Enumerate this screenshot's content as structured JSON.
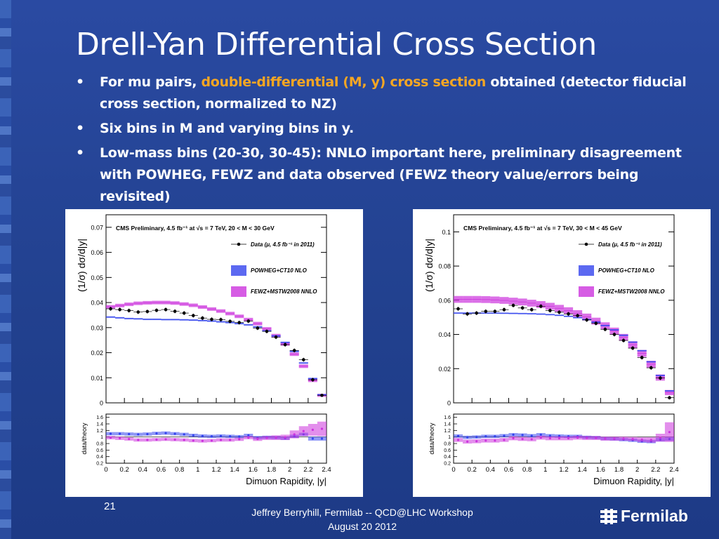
{
  "slide": {
    "title": "Drell-Yan Differential Cross Section",
    "bullets": [
      {
        "pre": "For mu pairs, ",
        "highlight": "double-differential (M, y) cross section",
        "post": " obtained (detector fiducial cross section, normalized to NZ)"
      },
      {
        "pre": "Six bins in M and varying bins in y.",
        "highlight": "",
        "post": ""
      },
      {
        "pre": "Low-mass bins (20-30, 30-45):  NNLO important here, preliminary disagreement with POWHEG, FEWZ and data observed (FEWZ theory value/errors being revisited)",
        "highlight": "",
        "post": ""
      }
    ],
    "bullet_symbol": "•",
    "slide_number": "21",
    "footer_line1": "Jeffrey Berryhill, Fermilab -- QCD@LHC Workshop",
    "footer_line2": "August 20 2012",
    "logo_text": "Fermilab",
    "logo_icon": "fermilab-logo-icon"
  },
  "colors": {
    "background": "#2a4aa2",
    "highlight": "#f5a623",
    "powheg": "#3344ee",
    "fewz": "#cc33dd",
    "data": "#000000"
  },
  "chart_data": [
    {
      "type": "scatter",
      "title": "CMS Preliminary, 4.5 fb⁻¹ at √s = 7 TeV, 20 < M < 30 GeV",
      "ylabel": "(1/σ) dσ/d|y|",
      "xlabel": "Dimuon Rapidity, |y|",
      "ratio_ylabel": "data/theory",
      "xlim": [
        0,
        2.4
      ],
      "ylim": [
        0,
        0.075
      ],
      "yticks": [
        0,
        0.01,
        0.02,
        0.03,
        0.04,
        0.05,
        0.06,
        0.07
      ],
      "ytick_labels": [
        "0",
        "0.01",
        "0.02",
        "0.03",
        "0.04",
        "0.05",
        "0.06",
        "0.07"
      ],
      "xticks": [
        0,
        0.2,
        0.4,
        0.6,
        0.8,
        1,
        1.2,
        1.4,
        1.6,
        1.8,
        2,
        2.2,
        2.4
      ],
      "xtick_labels": [
        "0",
        "0.2",
        "0.4",
        "0.6",
        "0.8",
        "1",
        "1.2",
        "1.4",
        "1.6",
        "1.8",
        "2",
        "2.2",
        "2.4"
      ],
      "ratio_ylim": [
        0.2,
        1.7
      ],
      "ratio_yticks": [
        0.2,
        0.4,
        0.6,
        0.8,
        1,
        1.2,
        1.4,
        1.6
      ],
      "ratio_ytick_labels": [
        "0.2",
        "0.4",
        "0.6",
        "0.8",
        "1",
        "1.2",
        "1.4",
        "1.6"
      ],
      "legend": {
        "data": "Data (μ, 4.5 fb⁻¹ in 2011)",
        "powheg": "POWHEG+CT10 NLO",
        "fewz": "FEWZ+MSTW2008 NNLO",
        "position": "top-right"
      },
      "bin_width": 0.1,
      "x": [
        0.05,
        0.15,
        0.25,
        0.35,
        0.45,
        0.55,
        0.65,
        0.75,
        0.85,
        0.95,
        1.05,
        1.15,
        1.25,
        1.35,
        1.45,
        1.55,
        1.65,
        1.75,
        1.85,
        1.95,
        2.05,
        2.15,
        2.25,
        2.35
      ],
      "series": [
        {
          "name": "Data (μ, 4.5 fb⁻¹ in 2011)",
          "values": [
            0.0375,
            0.0372,
            0.0368,
            0.0362,
            0.0364,
            0.0369,
            0.0372,
            0.0365,
            0.0358,
            0.0348,
            0.0338,
            0.0333,
            0.0332,
            0.0325,
            0.032,
            0.0326,
            0.0298,
            0.0285,
            0.0262,
            0.0232,
            0.0209,
            0.0172,
            0.0092,
            0.003
          ],
          "errors": [
            0.0008,
            0.0008,
            0.0008,
            0.0008,
            0.0008,
            0.0008,
            0.0008,
            0.0008,
            0.0008,
            0.0008,
            0.0008,
            0.0008,
            0.0008,
            0.0008,
            0.0008,
            0.0008,
            0.0008,
            0.0008,
            0.0008,
            0.0008,
            0.0008,
            0.0008,
            0.0008,
            0.0006
          ]
        },
        {
          "name": "POWHEG+CT10 NLO",
          "values": [
            0.0342,
            0.0339,
            0.0336,
            0.0335,
            0.0333,
            0.0333,
            0.0332,
            0.0332,
            0.0331,
            0.033,
            0.0328,
            0.0326,
            0.0323,
            0.032,
            0.0316,
            0.0311,
            0.0303,
            0.0287,
            0.0267,
            0.0241,
            0.0205,
            0.0159,
            0.0097,
            0.0032
          ],
          "errors": [
            0.0003,
            0.0003,
            0.0003,
            0.0003,
            0.0003,
            0.0003,
            0.0003,
            0.0003,
            0.0003,
            0.0003,
            0.0003,
            0.0003,
            0.0003,
            0.0003,
            0.0003,
            0.0003,
            0.0003,
            0.0003,
            0.0003,
            0.0003,
            0.0003,
            0.0003,
            0.0003,
            0.0003
          ]
        },
        {
          "name": "FEWZ+MSTW2008 NNLO",
          "values": [
            0.0383,
            0.0388,
            0.0393,
            0.0397,
            0.0399,
            0.04,
            0.04,
            0.0398,
            0.0394,
            0.0389,
            0.0382,
            0.0374,
            0.0366,
            0.0356,
            0.0345,
            0.0332,
            0.0316,
            0.0295,
            0.0268,
            0.0235,
            0.0194,
            0.0146,
            0.009,
            0.003
          ],
          "errors": [
            0.0007,
            0.0007,
            0.0007,
            0.0007,
            0.0007,
            0.0007,
            0.0007,
            0.0007,
            0.0007,
            0.0007,
            0.0007,
            0.0007,
            0.0007,
            0.0007,
            0.0007,
            0.0007,
            0.0007,
            0.0007,
            0.0007,
            0.0007,
            0.0007,
            0.0007,
            0.0007,
            0.0006
          ]
        }
      ],
      "ratio_series": [
        {
          "name": "POWHEG+CT10 NLO",
          "values": [
            1.1,
            1.1,
            1.09,
            1.08,
            1.09,
            1.11,
            1.12,
            1.1,
            1.08,
            1.05,
            1.03,
            1.02,
            1.03,
            1.02,
            1.01,
            1.05,
            0.98,
            0.99,
            0.98,
            0.96,
            1.02,
            1.08,
            0.95,
            0.95
          ],
          "errors": [
            0.05,
            0.05,
            0.05,
            0.05,
            0.05,
            0.05,
            0.05,
            0.05,
            0.05,
            0.05,
            0.05,
            0.05,
            0.05,
            0.05,
            0.05,
            0.05,
            0.05,
            0.05,
            0.05,
            0.05,
            0.05,
            0.05,
            0.06,
            0.06
          ]
        },
        {
          "name": "FEWZ+MSTW2008 NNLO",
          "values": [
            0.98,
            0.96,
            0.94,
            0.91,
            0.91,
            0.92,
            0.93,
            0.92,
            0.91,
            0.89,
            0.88,
            0.89,
            0.91,
            0.91,
            0.93,
            0.98,
            0.94,
            0.97,
            0.98,
            0.99,
            1.08,
            1.18,
            1.22,
            1.25
          ],
          "errors": [
            0.05,
            0.05,
            0.05,
            0.05,
            0.05,
            0.05,
            0.05,
            0.05,
            0.05,
            0.05,
            0.05,
            0.05,
            0.05,
            0.05,
            0.05,
            0.05,
            0.06,
            0.06,
            0.07,
            0.08,
            0.12,
            0.15,
            0.18,
            0.22
          ]
        }
      ]
    },
    {
      "type": "scatter",
      "title": "CMS Preliminary, 4.5 fb⁻¹ at √s = 7 TeV, 30 < M < 45 GeV",
      "ylabel": "(1/σ) dσ/d|y|",
      "xlabel": "Dimuon Rapidity, |y|",
      "ratio_ylabel": "data/theory",
      "xlim": [
        0,
        2.4
      ],
      "ylim": [
        0,
        0.11
      ],
      "yticks": [
        0,
        0.02,
        0.04,
        0.06,
        0.08,
        0.1
      ],
      "ytick_labels": [
        "0",
        "0.02",
        "0.04",
        "0.06",
        "0.08",
        "0.1"
      ],
      "xticks": [
        0,
        0.2,
        0.4,
        0.6,
        0.8,
        1,
        1.2,
        1.4,
        1.6,
        1.8,
        2,
        2.2,
        2.4
      ],
      "xtick_labels": [
        "0",
        "0.2",
        "0.4",
        "0.6",
        "0.8",
        "1",
        "1.2",
        "1.4",
        "1.6",
        "1.8",
        "2",
        "2.2",
        "2.4"
      ],
      "ratio_ylim": [
        0.2,
        1.7
      ],
      "ratio_yticks": [
        0.2,
        0.4,
        0.6,
        0.8,
        1,
        1.2,
        1.4,
        1.6
      ],
      "ratio_ytick_labels": [
        "0.2",
        "0.4",
        "0.6",
        "0.8",
        "1",
        "1.2",
        "1.4",
        "1.6"
      ],
      "legend": {
        "data": "Data (μ, 4.5 fb⁻¹ in 2011)",
        "powheg": "POWHEG+CT10 NLO",
        "fewz": "FEWZ+MSTW2008 NNLO",
        "position": "top-right"
      },
      "bin_width": 0.1,
      "x": [
        0.05,
        0.15,
        0.25,
        0.35,
        0.45,
        0.55,
        0.65,
        0.75,
        0.85,
        0.95,
        1.05,
        1.15,
        1.25,
        1.35,
        1.45,
        1.55,
        1.65,
        1.75,
        1.85,
        1.95,
        2.05,
        2.15,
        2.25,
        2.35
      ],
      "series": [
        {
          "name": "Data (μ, 4.5 fb⁻¹ in 2011)",
          "values": [
            0.055,
            0.052,
            0.0525,
            0.0535,
            0.0535,
            0.0545,
            0.057,
            0.0555,
            0.0545,
            0.0565,
            0.054,
            0.053,
            0.052,
            0.051,
            0.0485,
            0.0465,
            0.043,
            0.04,
            0.0365,
            0.032,
            0.0265,
            0.0205,
            0.0145,
            0.003
          ],
          "errors": [
            0.0012,
            0.0012,
            0.0012,
            0.0012,
            0.0012,
            0.0012,
            0.0012,
            0.0012,
            0.0012,
            0.0012,
            0.0012,
            0.0012,
            0.0012,
            0.0012,
            0.0012,
            0.0012,
            0.0012,
            0.0012,
            0.0012,
            0.0012,
            0.0012,
            0.0012,
            0.0012,
            0.001
          ]
        },
        {
          "name": "POWHEG+CT10 NLO",
          "values": [
            0.0525,
            0.0525,
            0.0525,
            0.0525,
            0.0525,
            0.0524,
            0.0523,
            0.0522,
            0.0521,
            0.0519,
            0.0516,
            0.0512,
            0.0506,
            0.0498,
            0.0487,
            0.0472,
            0.0452,
            0.0427,
            0.0395,
            0.0355,
            0.0305,
            0.024,
            0.016,
            0.007
          ],
          "errors": [
            0.0004,
            0.0004,
            0.0004,
            0.0004,
            0.0004,
            0.0004,
            0.0004,
            0.0004,
            0.0004,
            0.0004,
            0.0004,
            0.0004,
            0.0004,
            0.0004,
            0.0004,
            0.0004,
            0.0004,
            0.0004,
            0.0004,
            0.0004,
            0.0004,
            0.0004,
            0.0004,
            0.0004
          ]
        },
        {
          "name": "FEWZ+MSTW2008 NNLO",
          "values": [
            0.0605,
            0.0605,
            0.0605,
            0.0604,
            0.0602,
            0.0599,
            0.0595,
            0.059,
            0.0583,
            0.0575,
            0.0565,
            0.0553,
            0.0539,
            0.0522,
            0.0502,
            0.0478,
            0.0451,
            0.042,
            0.0383,
            0.034,
            0.0289,
            0.0226,
            0.0148,
            0.006
          ],
          "errors": [
            0.002,
            0.002,
            0.002,
            0.002,
            0.002,
            0.002,
            0.002,
            0.002,
            0.002,
            0.002,
            0.002,
            0.002,
            0.002,
            0.002,
            0.002,
            0.002,
            0.002,
            0.002,
            0.002,
            0.002,
            0.002,
            0.002,
            0.0018,
            0.0015
          ]
        }
      ],
      "ratio_series": [
        {
          "name": "POWHEG+CT10 NLO",
          "values": [
            1.03,
            0.99,
            1.0,
            1.02,
            1.02,
            1.04,
            1.07,
            1.06,
            1.04,
            1.07,
            1.04,
            1.03,
            1.02,
            1.02,
            0.99,
            0.98,
            0.95,
            0.94,
            0.92,
            0.9,
            0.87,
            0.86,
            0.92,
            0.94
          ],
          "errors": [
            0.05,
            0.05,
            0.05,
            0.05,
            0.05,
            0.05,
            0.05,
            0.05,
            0.05,
            0.05,
            0.05,
            0.05,
            0.05,
            0.05,
            0.05,
            0.05,
            0.05,
            0.05,
            0.05,
            0.05,
            0.05,
            0.05,
            0.06,
            0.06
          ]
        },
        {
          "name": "FEWZ+MSTW2008 NNLO",
          "values": [
            0.91,
            0.86,
            0.87,
            0.89,
            0.89,
            0.91,
            0.96,
            0.94,
            0.93,
            0.98,
            0.96,
            0.96,
            0.96,
            0.98,
            0.97,
            0.97,
            0.95,
            0.95,
            0.95,
            0.94,
            0.92,
            0.91,
            0.98,
            1.15
          ],
          "errors": [
            0.06,
            0.06,
            0.06,
            0.06,
            0.06,
            0.06,
            0.06,
            0.06,
            0.06,
            0.06,
            0.06,
            0.06,
            0.06,
            0.06,
            0.06,
            0.06,
            0.06,
            0.06,
            0.06,
            0.06,
            0.07,
            0.08,
            0.12,
            0.3
          ]
        }
      ]
    }
  ]
}
